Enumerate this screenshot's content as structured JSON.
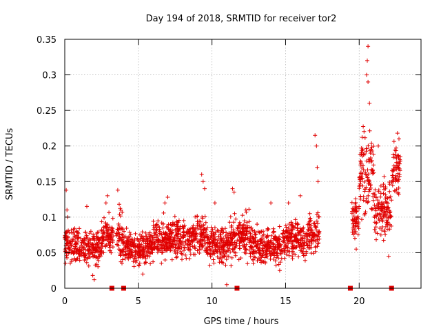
{
  "chart_data": {
    "type": "scatter",
    "title": "Day 194 of 2018, SRMTID for receiver tor2",
    "xlabel": "GPS time / hours",
    "ylabel": "SRMTID / TECUs",
    "xlim": [
      0,
      24.2
    ],
    "ylim": [
      0,
      0.35
    ],
    "xticks": [
      0,
      5,
      10,
      15,
      20
    ],
    "xtick_labels": [
      "0",
      "5",
      "10",
      "15",
      "20"
    ],
    "yticks": [
      0,
      0.05,
      0.1,
      0.15,
      0.2,
      0.25,
      0.3,
      0.35
    ],
    "ytick_labels": [
      "0",
      "0.05",
      "0.1",
      "0.15",
      "0.2",
      "0.25",
      "0.3",
      "0.35"
    ],
    "grid": true,
    "series": [
      {
        "name": "SRMTID",
        "marker": "plus",
        "color": "#e00000",
        "segments": [
          {
            "x_start": 0.0,
            "x_end": 1.0,
            "typical": 0.062,
            "spread": 0.022,
            "spikes": [
              [
                0.1,
                0.138
              ],
              [
                0.15,
                0.11
              ],
              [
                0.2,
                0.1
              ]
            ]
          },
          {
            "x_start": 1.0,
            "x_end": 2.5,
            "typical": 0.058,
            "spread": 0.022,
            "spikes": [
              [
                1.5,
                0.115
              ],
              [
                1.9,
                0.018
              ],
              [
                2.0,
                0.012
              ]
            ]
          },
          {
            "x_start": 2.5,
            "x_end": 3.3,
            "typical": 0.075,
            "spread": 0.025,
            "spikes": [
              [
                2.8,
                0.12
              ],
              [
                2.9,
                0.13
              ]
            ]
          },
          {
            "x_start": 3.5,
            "x_end": 4.0,
            "typical": 0.07,
            "spread": 0.03,
            "spikes": [
              [
                3.6,
                0.138
              ],
              [
                3.7,
                0.118
              ]
            ]
          },
          {
            "x_start": 4.0,
            "x_end": 6.0,
            "typical": 0.058,
            "spread": 0.02,
            "spikes": [
              [
                5.1,
                0.075
              ],
              [
                5.3,
                0.02
              ]
            ]
          },
          {
            "x_start": 6.0,
            "x_end": 9.0,
            "typical": 0.07,
            "spread": 0.022,
            "spikes": [
              [
                6.8,
                0.12
              ],
              [
                7.0,
                0.128
              ]
            ]
          },
          {
            "x_start": 9.0,
            "x_end": 9.6,
            "typical": 0.075,
            "spread": 0.025,
            "spikes": [
              [
                9.3,
                0.16
              ],
              [
                9.4,
                0.15
              ],
              [
                9.5,
                0.14
              ]
            ]
          },
          {
            "x_start": 9.6,
            "x_end": 11.2,
            "typical": 0.06,
            "spread": 0.02,
            "spikes": [
              [
                10.2,
                0.12
              ],
              [
                11.0,
                0.005
              ]
            ]
          },
          {
            "x_start": 11.2,
            "x_end": 12.6,
            "typical": 0.072,
            "spread": 0.025,
            "spikes": [
              [
                11.4,
                0.14
              ],
              [
                11.5,
                0.135
              ],
              [
                12.3,
                0.11
              ]
            ]
          },
          {
            "x_start": 12.6,
            "x_end": 14.8,
            "typical": 0.06,
            "spread": 0.022,
            "spikes": [
              [
                14.0,
                0.12
              ],
              [
                14.6,
                0.025
              ]
            ]
          },
          {
            "x_start": 14.8,
            "x_end": 16.5,
            "typical": 0.068,
            "spread": 0.022,
            "spikes": [
              [
                15.2,
                0.12
              ],
              [
                16.0,
                0.13
              ]
            ]
          },
          {
            "x_start": 16.5,
            "x_end": 17.3,
            "typical": 0.078,
            "spread": 0.025,
            "spikes": [
              [
                17.0,
                0.215
              ],
              [
                17.1,
                0.2
              ],
              [
                17.15,
                0.17
              ],
              [
                17.2,
                0.15
              ]
            ]
          },
          {
            "x_start": 19.5,
            "x_end": 20.0,
            "typical": 0.1,
            "spread": 0.03,
            "spikes": [
              [
                19.8,
                0.055
              ]
            ]
          },
          {
            "x_start": 20.0,
            "x_end": 21.0,
            "typical": 0.16,
            "spread": 0.05,
            "spikes": [
              [
                20.6,
                0.34
              ],
              [
                20.55,
                0.32
              ],
              [
                20.5,
                0.3
              ],
              [
                20.6,
                0.29
              ],
              [
                20.7,
                0.26
              ]
            ]
          },
          {
            "x_start": 21.0,
            "x_end": 22.2,
            "typical": 0.11,
            "spread": 0.035,
            "spikes": [
              [
                21.3,
                0.2
              ],
              [
                22.0,
                0.045
              ]
            ]
          },
          {
            "x_start": 22.2,
            "x_end": 22.8,
            "typical": 0.165,
            "spread": 0.03,
            "spikes": [
              [
                22.6,
                0.218
              ],
              [
                22.7,
                0.21
              ]
            ]
          }
        ]
      },
      {
        "name": "zero-value markers",
        "marker": "square",
        "color": "#e00000",
        "points": [
          [
            3.2,
            0
          ],
          [
            4.0,
            0
          ],
          [
            11.7,
            0
          ],
          [
            19.4,
            0
          ],
          [
            22.2,
            0
          ]
        ]
      }
    ]
  }
}
